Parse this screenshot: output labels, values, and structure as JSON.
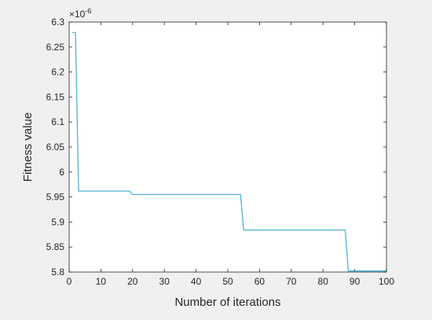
{
  "chart_data": {
    "type": "line",
    "xlabel": "Number of iterations",
    "ylabel": "Fitness value",
    "y_exponent_label": "×10",
    "y_exponent_power": "-6",
    "xlim": [
      0,
      100
    ],
    "ylim": [
      5.8,
      6.3
    ],
    "x_ticks": [
      0,
      10,
      20,
      30,
      40,
      50,
      60,
      70,
      80,
      90,
      100
    ],
    "x_tick_labels": [
      "0",
      "10",
      "20",
      "30",
      "40",
      "50",
      "60",
      "70",
      "80",
      "90",
      "100"
    ],
    "y_ticks": [
      5.8,
      5.85,
      5.9,
      5.95,
      6.0,
      6.05,
      6.1,
      6.15,
      6.2,
      6.25,
      6.3
    ],
    "y_tick_labels": [
      "5.8",
      "5.85",
      "5.9",
      "5.95",
      "6",
      "6.05",
      "6.1",
      "6.15",
      "6.2",
      "6.25",
      "6.3"
    ],
    "grid": false,
    "series": [
      {
        "color": "#4db3d8",
        "x": [
          1,
          2,
          3,
          19,
          20,
          54,
          55,
          87,
          88,
          100
        ],
        "y": [
          6.279,
          6.279,
          5.962,
          5.962,
          5.955,
          5.955,
          5.884,
          5.884,
          5.802,
          5.802
        ]
      }
    ]
  }
}
